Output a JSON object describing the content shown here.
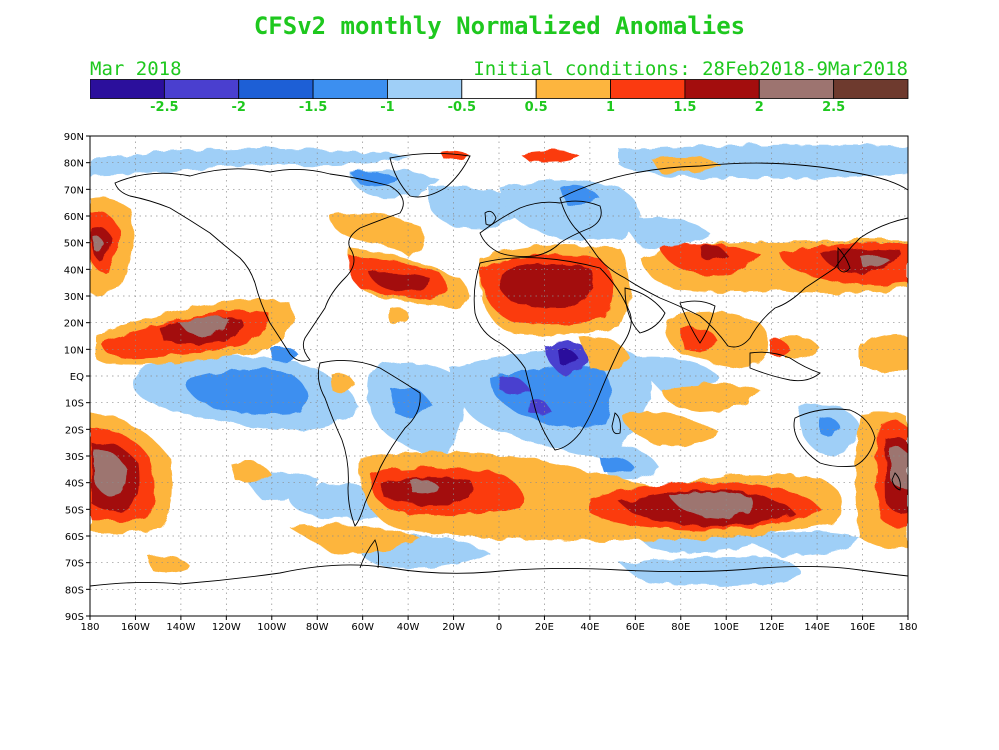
{
  "title": "CFSv2 monthly Normalized Anomalies",
  "month_label": "Mar 2018",
  "init_label": "Initial conditions: 28Feb2018-9Mar2018",
  "text_color": "#1ec81e",
  "colorbar": {
    "colors": [
      "#2b0f9c",
      "#4a3fcf",
      "#1d5fd6",
      "#3c8ff0",
      "#9fcff7",
      "#ffffff",
      "#fdb53e",
      "#fb3a10",
      "#a30d0d",
      "#9d7470",
      "#6e3a2e"
    ],
    "labels": [
      "-2.5",
      "-2",
      "-1.5",
      "-1",
      "-0.5",
      "0.5",
      "1",
      "1.5",
      "2",
      "2.5"
    ]
  },
  "map": {
    "lat_labels": [
      "90N",
      "80N",
      "70N",
      "60N",
      "50N",
      "40N",
      "30N",
      "20N",
      "10N",
      "EQ",
      "10S",
      "20S",
      "30S",
      "40S",
      "50S",
      "60S",
      "70S",
      "80S",
      "90S"
    ],
    "lon_labels": [
      "180",
      "160W",
      "140W",
      "120W",
      "100W",
      "80W",
      "60W",
      "40W",
      "20W",
      "0",
      "20E",
      "40E",
      "60E",
      "80E",
      "100E",
      "120E",
      "140E",
      "160E",
      "180"
    ]
  }
}
